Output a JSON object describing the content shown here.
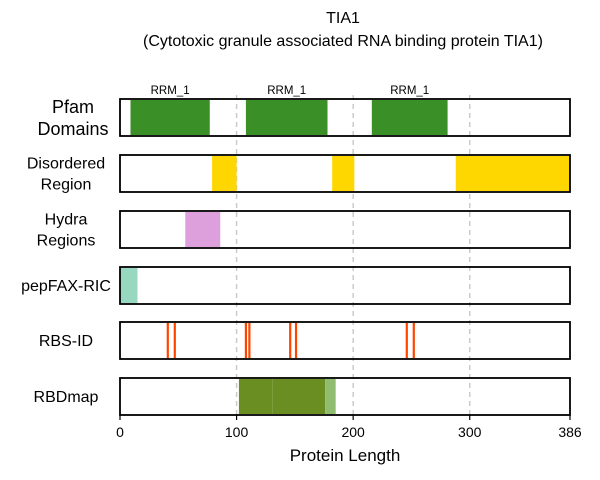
{
  "chart_data": {
    "type": "bar",
    "title_line1": "TIA1",
    "title_line2": "(Cytotoxic granule associated RNA binding protein TIA1)",
    "xlabel": "Protein Length",
    "xlim": [
      0,
      386
    ],
    "xticks": [
      0,
      100,
      200,
      300,
      386
    ],
    "gridlines": [
      100,
      200,
      300
    ],
    "colors": {
      "pfam": "#3a8f27",
      "disordered": "#ffd700",
      "hydra": "#dda0dd",
      "pepfax": "#98d8c0",
      "rbsid": "#ff4500",
      "rbdmap": "#6b8e23",
      "rbdmap_light": "#8fbc6f"
    },
    "tracks": [
      {
        "label_lines": [
          "Pfam",
          "Domains"
        ],
        "color": "#3a8f27",
        "segments": [
          {
            "start": 9,
            "end": 77,
            "label": "RRM_1"
          },
          {
            "start": 108,
            "end": 178,
            "label": "RRM_1"
          },
          {
            "start": 216,
            "end": 281,
            "label": "RRM_1"
          }
        ]
      },
      {
        "label_lines": [
          "Disordered",
          "Region"
        ],
        "color": "#ffd700",
        "segments": [
          {
            "start": 79,
            "end": 100
          },
          {
            "start": 182,
            "end": 201
          },
          {
            "start": 288,
            "end": 386
          }
        ]
      },
      {
        "label_lines": [
          "Hydra",
          "Regions"
        ],
        "color": "#dda0dd",
        "segments": [
          {
            "start": 56,
            "end": 86
          }
        ]
      },
      {
        "label_lines": [
          "pepFAX-RIC"
        ],
        "color": "#98d8c0",
        "segments": [
          {
            "start": 0,
            "end": 15
          }
        ]
      },
      {
        "label_lines": [
          "RBS-ID"
        ],
        "color": "#ff4500",
        "sites": [
          41,
          47,
          108,
          111,
          146,
          151,
          246,
          252
        ]
      },
      {
        "label_lines": [
          "RBDmap"
        ],
        "color": "#6b8e23",
        "segments": [
          {
            "start": 102,
            "end": 131,
            "color": "#6b8e23"
          },
          {
            "start": 131,
            "end": 176,
            "color": "#6b8e23"
          },
          {
            "start": 176,
            "end": 185,
            "color": "#8fbc6f"
          }
        ]
      }
    ]
  }
}
